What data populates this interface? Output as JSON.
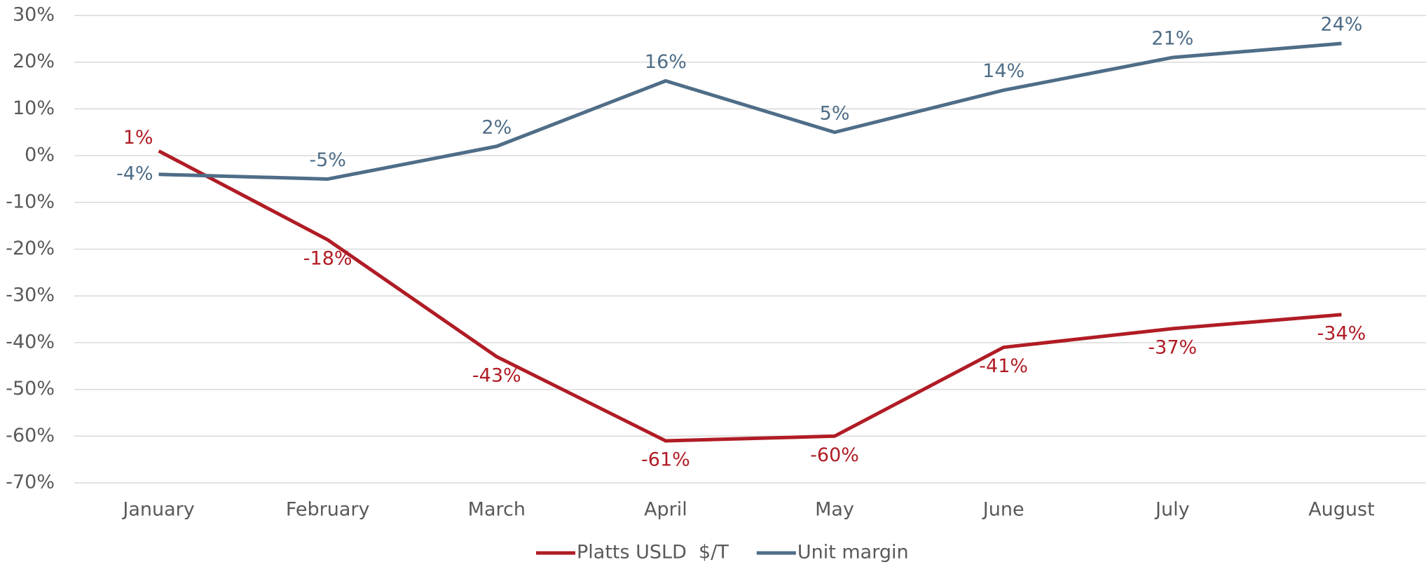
{
  "chart_data": {
    "type": "line",
    "categories": [
      "January",
      "February",
      "March",
      "April",
      "May",
      "June",
      "July",
      "August"
    ],
    "series": [
      {
        "name": "Platts USLD  $/T",
        "color": "#b01c25",
        "values": [
          1,
          -18,
          -43,
          -61,
          -60,
          -41,
          -37,
          -34
        ],
        "value_labels": [
          "1%",
          "-18%",
          "-43%",
          "-61%",
          "-60%",
          "-41%",
          "-37%",
          "-34%"
        ]
      },
      {
        "name": "Unit margin",
        "color": "#4f6d87",
        "values": [
          -4,
          -5,
          2,
          16,
          5,
          14,
          21,
          24
        ],
        "value_labels": [
          "-4%",
          "-5%",
          "2%",
          "16%",
          "5%",
          "14%",
          "21%",
          "24%"
        ]
      }
    ],
    "ylim": [
      -70,
      30
    ],
    "yticks": [
      {
        "value": 30,
        "label": "30%"
      },
      {
        "value": 20,
        "label": "20%"
      },
      {
        "value": 10,
        "label": "10%"
      },
      {
        "value": 0,
        "label": "0%"
      },
      {
        "value": -10,
        "label": "-10%"
      },
      {
        "value": -20,
        "label": "-20%"
      },
      {
        "value": -30,
        "label": "-30%"
      },
      {
        "value": -40,
        "label": "-40%"
      },
      {
        "value": -50,
        "label": "-50%"
      },
      {
        "value": -60,
        "label": "-60%"
      },
      {
        "value": -70,
        "label": "-70%"
      }
    ],
    "grid": true,
    "legend": "bottom"
  }
}
